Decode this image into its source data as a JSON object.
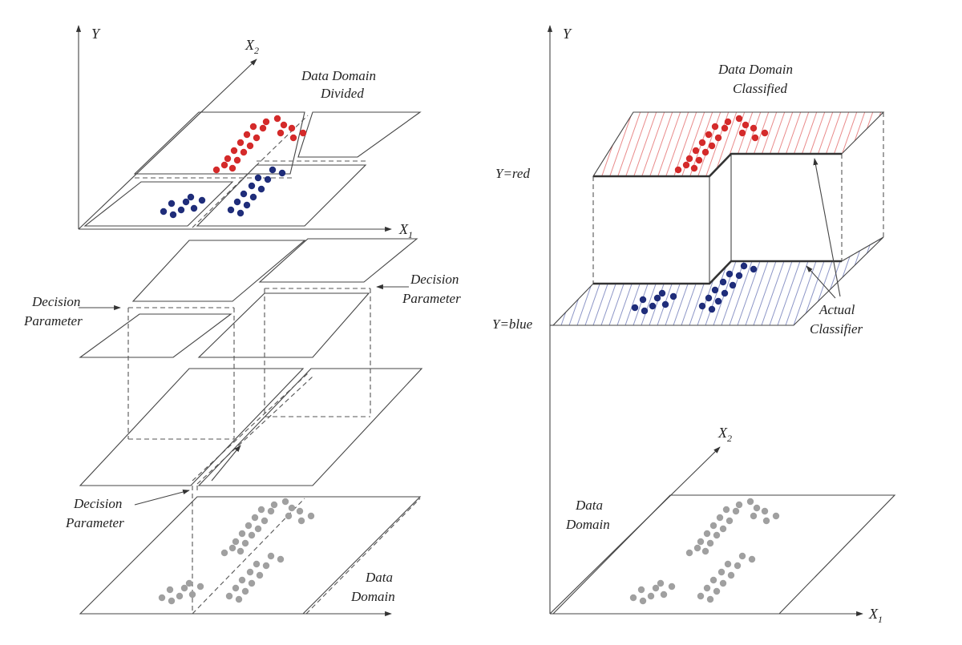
{
  "colors": {
    "red": "#d42a2a",
    "blue": "#1f2d7a",
    "gray": "#a0a0a0",
    "red_hatch": "#e98a8a",
    "blue_hatch": "#8d96c7"
  },
  "left": {
    "axis_y": "Y",
    "axis_x2": "X",
    "axis_x2_sub": "2",
    "axis_x1": "X",
    "axis_x1_sub": "1",
    "top_label_line1": "Data Domain",
    "top_label_line2": "Divided",
    "decision_right_line1": "Decision",
    "decision_right_line2": "Parameter",
    "decision_left_line1": "Decision",
    "decision_left_line2": "Parameter",
    "decision_bottom_line1": "Decision",
    "decision_bottom_line2": "Parameter",
    "bottom_label_line1": "Data",
    "bottom_label_line2": "Domain"
  },
  "right": {
    "axis_y": "Y",
    "y_red": "Y=red",
    "y_blue": "Y=blue",
    "top_label_line1": "Data Domain",
    "top_label_line2": "Classified",
    "classifier_line1": "Actual",
    "classifier_line2": "Classifier",
    "axis_x2": "X",
    "axis_x2_sub": "2",
    "axis_x1": "X",
    "axis_x1_sub": "1",
    "bottom_label_line1": "Data",
    "bottom_label_line2": "Domain"
  }
}
